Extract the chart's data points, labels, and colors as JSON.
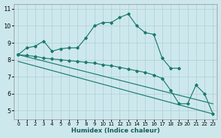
{
  "xlabel": "Humidex (Indice chaleur)",
  "background_color": "#cde8ec",
  "grid_color": "#aacdd4",
  "line_color": "#1a7a6e",
  "xlim": [
    -0.5,
    23.5
  ],
  "ylim": [
    4.5,
    11.3
  ],
  "xticks": [
    0,
    1,
    2,
    3,
    4,
    5,
    6,
    7,
    8,
    9,
    10,
    11,
    12,
    13,
    14,
    15,
    16,
    17,
    18,
    19,
    20,
    21,
    22,
    23
  ],
  "yticks": [
    5,
    6,
    7,
    8,
    9,
    10,
    11
  ],
  "curve1_x": [
    0,
    1,
    2,
    3,
    4,
    5,
    6,
    7,
    8,
    9,
    10,
    11,
    12,
    13,
    14,
    15,
    16,
    17,
    18,
    19
  ],
  "curve1_y": [
    8.3,
    8.7,
    8.8,
    9.1,
    8.5,
    8.65,
    8.7,
    8.7,
    9.3,
    10.0,
    10.2,
    10.2,
    10.5,
    10.7,
    10.0,
    9.6,
    9.5,
    8.1,
    7.5,
    7.5
  ],
  "curve2_x": [
    0,
    1,
    2,
    3,
    4,
    5,
    6,
    7,
    8,
    9,
    10,
    11,
    12,
    13,
    14,
    15,
    16,
    17,
    18,
    19,
    20,
    21,
    22,
    23
  ],
  "curve2_y": [
    8.3,
    8.25,
    8.2,
    8.1,
    8.05,
    8.0,
    7.95,
    7.9,
    7.85,
    7.8,
    7.7,
    7.65,
    7.55,
    7.45,
    7.35,
    7.25,
    7.1,
    6.9,
    6.2,
    5.4,
    5.4,
    6.5,
    6.0,
    4.8
  ],
  "line1_x": [
    0,
    23
  ],
  "line1_y": [
    8.3,
    5.4
  ],
  "line2_x": [
    0,
    23
  ],
  "line2_y": [
    7.9,
    4.8
  ]
}
